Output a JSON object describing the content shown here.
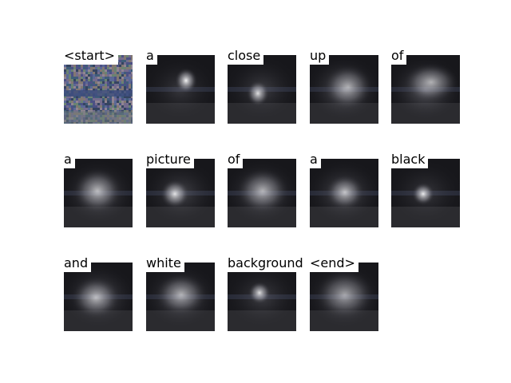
{
  "tokens": [
    "<start>",
    "a",
    "close",
    "up",
    "of",
    "a",
    "picture",
    "of",
    "a",
    "black",
    "and",
    "white",
    "background",
    "<end>"
  ],
  "colors": {
    "background": "#ffffff",
    "tile_dark": "#17171b",
    "attention_glow": "#ffffff",
    "start_tile_noise": [
      "#4a4f86",
      "#7a6f8f",
      "#3b5d78",
      "#8a7c70",
      "#5c6a9a",
      "#9a8c95",
      "#2f3f5a",
      "#6d8a6f"
    ]
  }
}
